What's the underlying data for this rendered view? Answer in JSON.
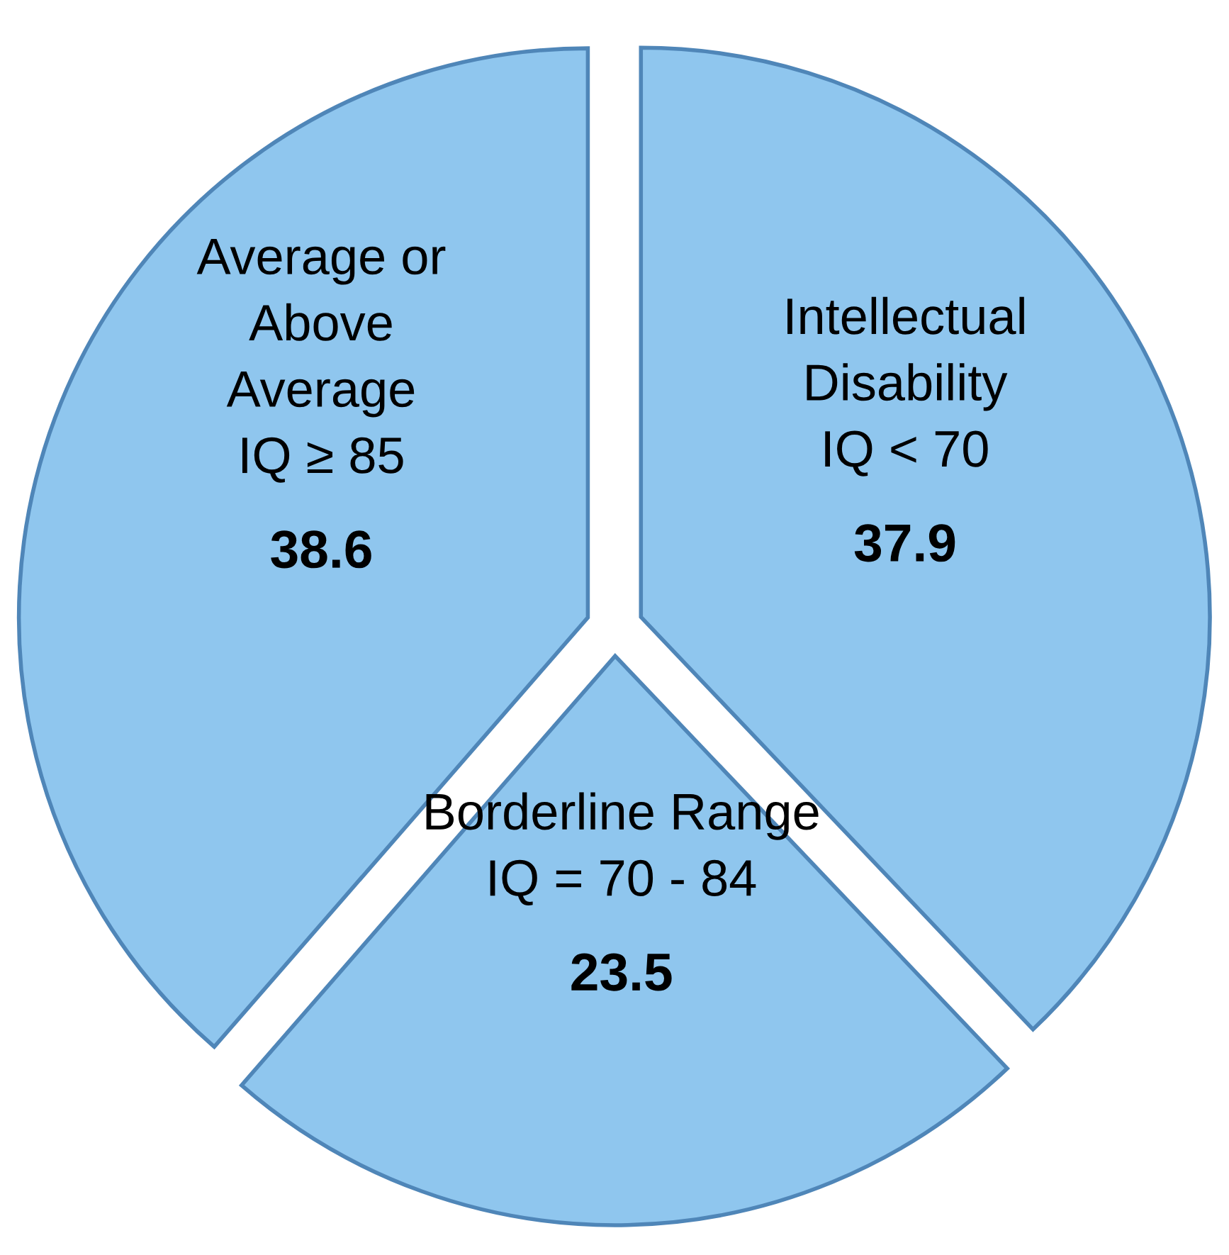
{
  "chart_data": {
    "type": "pie",
    "categories": [
      "Intellectual\nDisability\nIQ < 70",
      "Borderline Range\nIQ = 70 - 84",
      "Average or\nAbove\nAverage\nIQ ≥ 85"
    ],
    "values": [
      37.9,
      23.5,
      38.6
    ],
    "colors": [
      "#8fc6ee",
      "#8fc6ee",
      "#8fc6ee"
    ],
    "data_labels": true
  }
}
